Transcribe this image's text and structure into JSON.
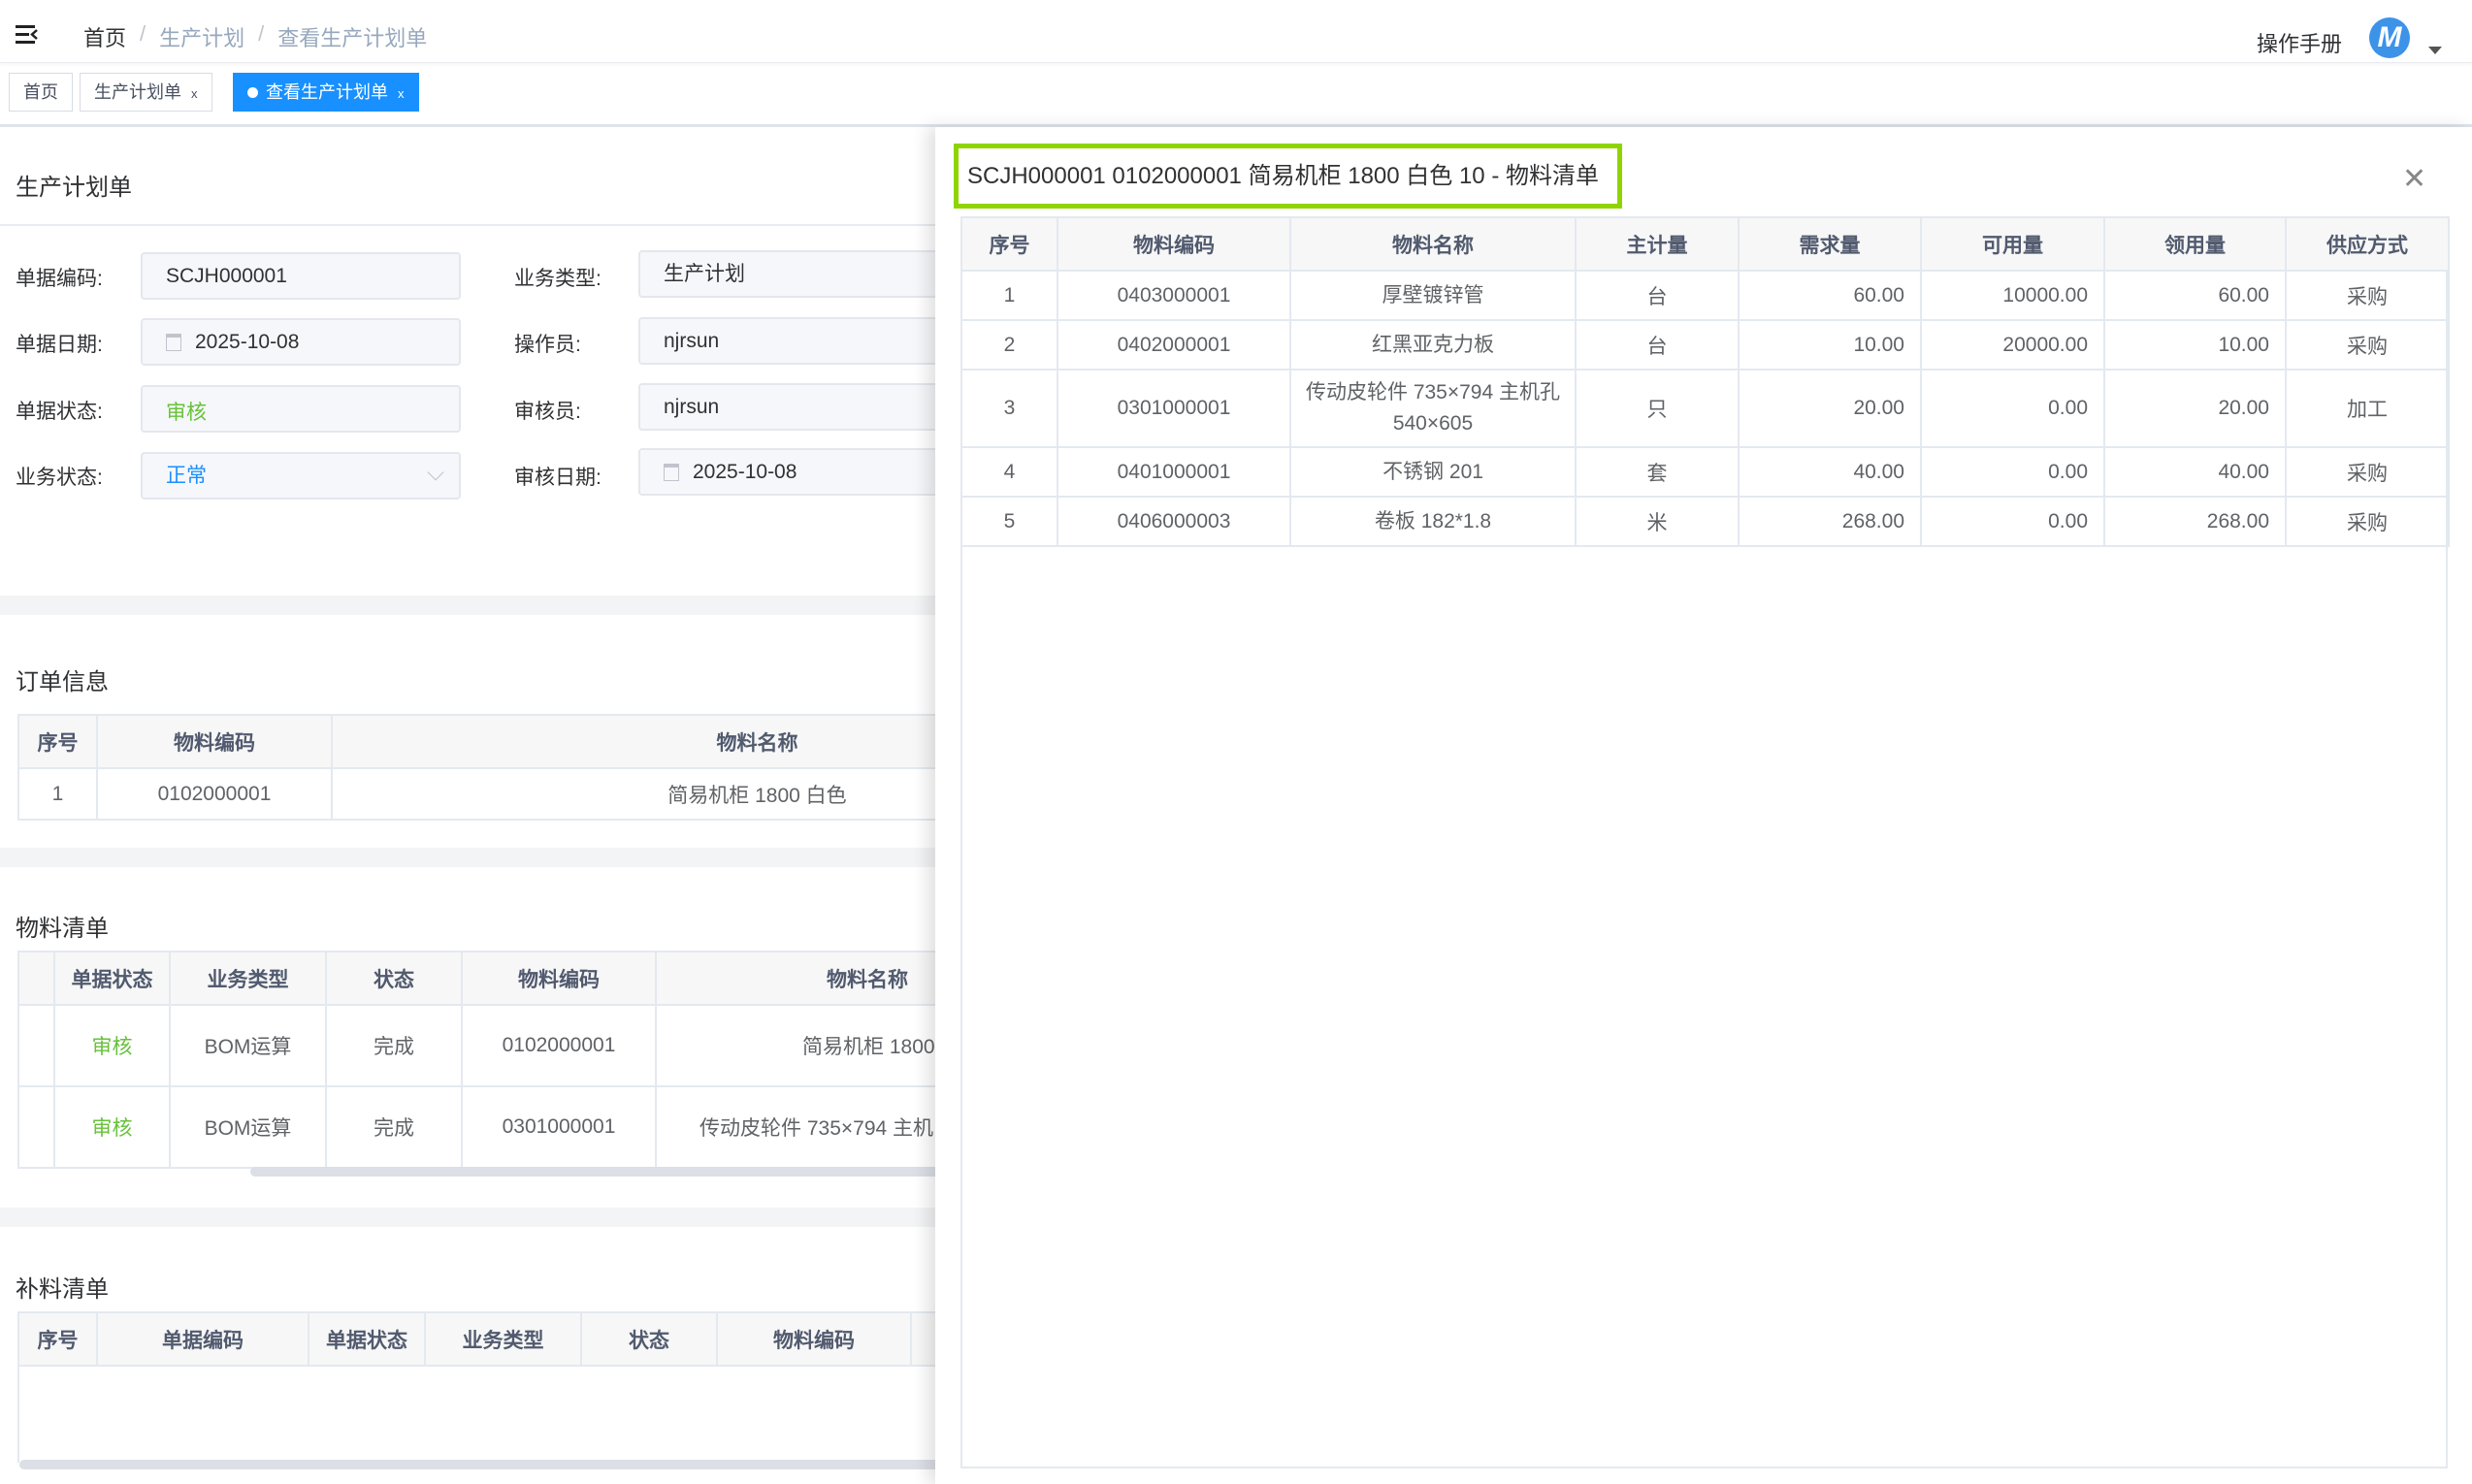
{
  "breadcrumb": [
    "首页",
    "生产计划",
    "查看生产计划单"
  ],
  "header": {
    "manual": "操作手册",
    "avatar_letter": "M"
  },
  "tabs": [
    {
      "label": "首页"
    },
    {
      "label": "生产计划单",
      "close": "x"
    },
    {
      "label": "查看生产计划单",
      "close": "x",
      "active": true
    }
  ],
  "form": {
    "title": "生产计划单",
    "fields": [
      {
        "label": "单据编码:",
        "value": "SCJH000001"
      },
      {
        "label": "单据日期:",
        "value": "2025-10-08"
      },
      {
        "label": "单据状态:",
        "value": "审核"
      },
      {
        "label": "业务状态:",
        "value": "正常"
      },
      {
        "label": "业务类型:",
        "value": "生产计划"
      },
      {
        "label": "操作员:",
        "value": "njrsun"
      },
      {
        "label": "审核员:",
        "value": "njrsun"
      },
      {
        "label": "审核日期:",
        "value": "2025-10-08"
      }
    ]
  },
  "order": {
    "title": "订单信息",
    "headers": [
      "序号",
      "物料编码",
      "物料名称"
    ],
    "rows": [
      [
        "1",
        "0102000001",
        "简易机柜 1800 白色"
      ]
    ]
  },
  "bom": {
    "title": "物料清单",
    "headers": [
      "",
      "单据状态",
      "业务类型",
      "状态",
      "物料编码",
      "物料名称"
    ],
    "rows": [
      [
        "",
        "审核",
        "BOM运算",
        "完成",
        "0102000001",
        "简易机柜 1800"
      ],
      [
        "",
        "审核",
        "BOM运算",
        "完成",
        "0301000001",
        "传动皮轮件 735×794 主机"
      ]
    ]
  },
  "supplement": {
    "title": "补料清单",
    "headers": [
      "序号",
      "单据编码",
      "单据状态",
      "业务类型",
      "状态",
      "物料编码"
    ]
  },
  "drawer": {
    "title": "SCJH000001 0102000001 简易机柜 1800 白色 10 - 物料清单",
    "headers": [
      "序号",
      "物料编码",
      "物料名称",
      "主计量",
      "需求量",
      "可用量",
      "领用量",
      "供应方式"
    ],
    "rows": [
      [
        "1",
        "0403000001",
        "厚壁镀锌管",
        "台",
        "60.00",
        "10000.00",
        "60.00",
        "采购"
      ],
      [
        "2",
        "0402000001",
        "红黑亚克力板",
        "台",
        "10.00",
        "20000.00",
        "10.00",
        "采购"
      ],
      [
        "3",
        "0301000001",
        "传动皮轮件 735×794 主机孔540×605",
        "只",
        "20.00",
        "0.00",
        "20.00",
        "加工"
      ],
      [
        "4",
        "0401000001",
        "不锈钢 201",
        "套",
        "40.00",
        "0.00",
        "40.00",
        "采购"
      ],
      [
        "5",
        "0406000003",
        "卷板 182*1.8",
        "米",
        "268.00",
        "0.00",
        "268.00",
        "采购"
      ]
    ]
  },
  "colors": {
    "accent": "#1890ff",
    "status_green": "#67c23a",
    "highlight": "#8fd400"
  }
}
